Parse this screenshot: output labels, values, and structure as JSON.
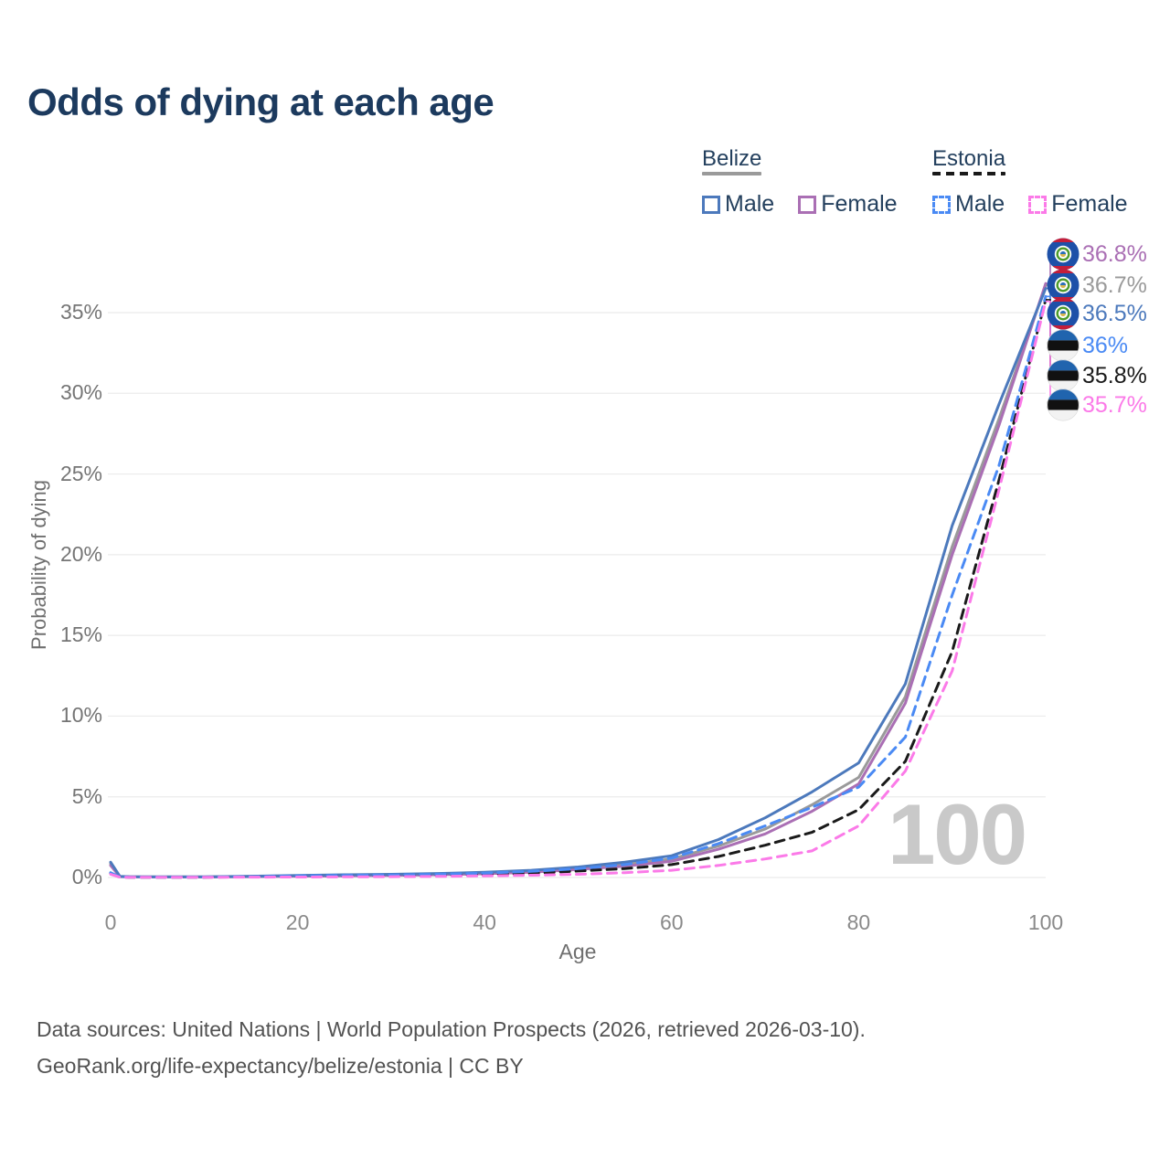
{
  "title": "Odds of dying at each age",
  "watermark": "100",
  "footer": {
    "line1": "Data sources: United Nations | World Population Prospects (2026, retrieved 2026-03-10).",
    "line2": "GeoRank.org/life-expectancy/belize/estonia | CC BY"
  },
  "colors": {
    "title_text": "#1c3a5e",
    "legend_text": "#24405e",
    "belize_male": "#4c79bc",
    "belize_both": "#9a9a9a",
    "belize_female": "#aa6fb4",
    "estonia_male": "#4a8af4",
    "estonia_both": "#1a1a1a",
    "estonia_female": "#fb7ae8",
    "gridline": "#ebebeb",
    "watermark": "#c9c9c9"
  },
  "legend": {
    "groups": [
      {
        "country": "Belize",
        "line_style": "solid",
        "underline_color": "#9a9a9a",
        "items": [
          {
            "label": "Male",
            "color": "#4c79bc",
            "dashed": false
          },
          {
            "label": "Female",
            "color": "#aa6fb4",
            "dashed": false
          }
        ]
      },
      {
        "country": "Estonia",
        "line_style": "dashed",
        "underline_color": "#1a1a1a",
        "items": [
          {
            "label": "Male",
            "color": "#4a8af4",
            "dashed": true
          },
          {
            "label": "Female",
            "color": "#fb7ae8",
            "dashed": true
          }
        ]
      }
    ]
  },
  "end_labels": [
    {
      "text": "36.8%",
      "value": 36.8,
      "color": "#aa6fb4",
      "flag": "belize",
      "series": "belize_female"
    },
    {
      "text": "36.7%",
      "value": 36.7,
      "color": "#9a9a9a",
      "flag": "belize",
      "series": "belize_both"
    },
    {
      "text": "36.5%",
      "value": 36.5,
      "color": "#4c79bc",
      "flag": "belize",
      "series": "belize_male"
    },
    {
      "text": "36%",
      "value": 36.0,
      "color": "#4a8af4",
      "flag": "estonia",
      "series": "estonia_male"
    },
    {
      "text": "35.8%",
      "value": 35.8,
      "color": "#1a1a1a",
      "flag": "estonia",
      "series": "estonia_both"
    },
    {
      "text": "35.7%",
      "value": 35.7,
      "color": "#fb7ae8",
      "flag": "estonia",
      "series": "estonia_female"
    }
  ],
  "chart_data": {
    "type": "line",
    "title": "Odds of dying at each age",
    "xlabel": "Age",
    "ylabel": "Probability of dying",
    "xlim": [
      0,
      100
    ],
    "ylim_percent": [
      0,
      37
    ],
    "grid": "horizontal",
    "legend_position": "top-right",
    "x_ticks": [
      {
        "v": 0,
        "label": "0"
      },
      {
        "v": 20,
        "label": "20"
      },
      {
        "v": 40,
        "label": "40"
      },
      {
        "v": 60,
        "label": "60"
      },
      {
        "v": 80,
        "label": "80"
      },
      {
        "v": 100,
        "label": "100"
      }
    ],
    "y_ticks": [
      {
        "v": 0,
        "label": "0%"
      },
      {
        "v": 5,
        "label": "5%"
      },
      {
        "v": 10,
        "label": "10%"
      },
      {
        "v": 15,
        "label": "15%"
      },
      {
        "v": 20,
        "label": "20%"
      },
      {
        "v": 25,
        "label": "25%"
      },
      {
        "v": 30,
        "label": "30%"
      },
      {
        "v": 35,
        "label": "35%"
      }
    ],
    "ages": [
      0,
      1,
      2,
      5,
      10,
      15,
      20,
      25,
      30,
      35,
      40,
      45,
      50,
      55,
      60,
      65,
      70,
      75,
      80,
      85,
      90,
      95,
      100
    ],
    "series": [
      {
        "id": "belize_both",
        "name": "Belize",
        "country": "Belize",
        "sex": "Both",
        "color": "#9a9a9a",
        "dashed": false,
        "values_percent": [
          0.85,
          0.06,
          0.045,
          0.035,
          0.035,
          0.06,
          0.1,
          0.13,
          0.16,
          0.2,
          0.27,
          0.38,
          0.55,
          0.8,
          1.15,
          1.95,
          3.0,
          4.5,
          6.2,
          11.2,
          20.5,
          28.4,
          36.7
        ]
      },
      {
        "id": "belize_female",
        "name": "Belize Female",
        "country": "Belize",
        "sex": "Female",
        "color": "#aa6fb4",
        "dashed": false,
        "values_percent": [
          0.75,
          0.05,
          0.04,
          0.03,
          0.03,
          0.05,
          0.08,
          0.1,
          0.13,
          0.17,
          0.23,
          0.32,
          0.5,
          0.7,
          1.0,
          1.75,
          2.7,
          4.1,
          5.8,
          10.8,
          20.0,
          28.0,
          36.8
        ]
      },
      {
        "id": "belize_male",
        "name": "Belize Male",
        "country": "Belize",
        "sex": "Male",
        "color": "#4c79bc",
        "dashed": false,
        "values_percent": [
          0.95,
          0.07,
          0.05,
          0.04,
          0.04,
          0.08,
          0.13,
          0.17,
          0.2,
          0.25,
          0.32,
          0.45,
          0.65,
          0.95,
          1.35,
          2.35,
          3.7,
          5.3,
          7.1,
          12.0,
          21.8,
          29.3,
          36.5
        ]
      },
      {
        "id": "estonia_both",
        "name": "Estonia",
        "country": "Estonia",
        "sex": "Both",
        "color": "#1a1a1a",
        "dashed": true,
        "values_percent": [
          0.25,
          0.02,
          0.015,
          0.015,
          0.015,
          0.035,
          0.06,
          0.08,
          0.1,
          0.13,
          0.18,
          0.26,
          0.4,
          0.55,
          0.8,
          1.3,
          2.0,
          2.8,
          4.2,
          7.2,
          14.0,
          24.6,
          35.8
        ]
      },
      {
        "id": "estonia_male",
        "name": "Estonia Male",
        "country": "Estonia",
        "sex": "Male",
        "color": "#4a8af4",
        "dashed": true,
        "values_percent": [
          0.3,
          0.03,
          0.02,
          0.02,
          0.02,
          0.05,
          0.1,
          0.13,
          0.16,
          0.2,
          0.27,
          0.38,
          0.55,
          0.8,
          1.2,
          2.1,
          3.2,
          4.35,
          5.6,
          8.7,
          17.5,
          25.5,
          36.0
        ]
      },
      {
        "id": "estonia_female",
        "name": "Estonia Female",
        "country": "Estonia",
        "sex": "Female",
        "color": "#fb7ae8",
        "dashed": true,
        "values_percent": [
          0.2,
          0.02,
          0.01,
          0.01,
          0.01,
          0.02,
          0.03,
          0.04,
          0.05,
          0.07,
          0.1,
          0.14,
          0.2,
          0.3,
          0.45,
          0.75,
          1.15,
          1.65,
          3.2,
          6.6,
          12.8,
          24.0,
          35.7
        ]
      }
    ]
  }
}
